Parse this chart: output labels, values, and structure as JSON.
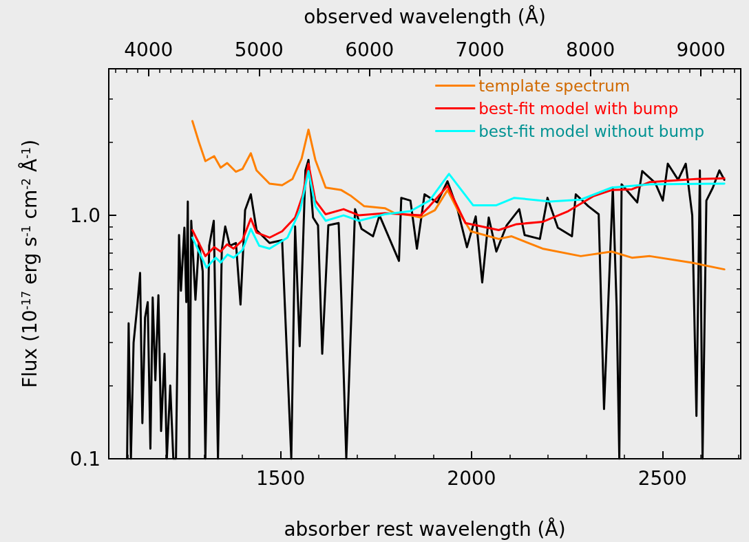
{
  "chart_data": {
    "type": "line",
    "xlabel": "absorber rest wavelength (Å)",
    "x2label": "observed wavelength (Å)",
    "ylabel": "Flux (10$^{-17}$ erg s$^{-1}$ cm$^{-2}$ Å$^{-1}$)",
    "xlim": [
      1050,
      2705
    ],
    "xticks": [
      {
        "value": 1100,
        "label": null
      },
      {
        "value": 1200,
        "label": null
      },
      {
        "value": 1300,
        "label": null
      },
      {
        "value": 1400,
        "label": null
      },
      1500,
      {
        "value": 1600,
        "label": null
      },
      {
        "value": 1700,
        "label": null
      },
      {
        "value": 1800,
        "label": null
      },
      {
        "value": 1900,
        "label": null
      },
      2000,
      {
        "value": 2100,
        "label": null
      },
      {
        "value": 2200,
        "label": null
      },
      {
        "value": 2300,
        "label": null
      },
      {
        "value": 2400,
        "label": null
      },
      2500,
      {
        "value": 2600,
        "label": null
      },
      {
        "value": 2700,
        "label": null
      }
    ],
    "x2lim": [
      3640,
      9360
    ],
    "x2ticks": [
      {
        "value": 3700,
        "label": null
      },
      {
        "value": 3800,
        "label": null
      },
      {
        "value": 3900,
        "label": null
      },
      4000,
      {
        "value": 4100,
        "label": null
      },
      {
        "value": 4200,
        "label": null
      },
      {
        "value": 4300,
        "label": null
      },
      {
        "value": 4400,
        "label": null
      },
      {
        "value": 4500,
        "label": null
      },
      {
        "value": 4600,
        "label": null
      },
      {
        "value": 4700,
        "label": null
      },
      {
        "value": 4800,
        "label": null
      },
      {
        "value": 4900,
        "label": null
      },
      5000,
      {
        "value": 5100,
        "label": null
      },
      {
        "value": 5200,
        "label": null
      },
      {
        "value": 5300,
        "label": null
      },
      {
        "value": 5400,
        "label": null
      },
      {
        "value": 5500,
        "label": null
      },
      {
        "value": 5600,
        "label": null
      },
      {
        "value": 5700,
        "label": null
      },
      {
        "value": 5800,
        "label": null
      },
      {
        "value": 5900,
        "label": null
      },
      6000,
      {
        "value": 6100,
        "label": null
      },
      {
        "value": 6200,
        "label": null
      },
      {
        "value": 6300,
        "label": null
      },
      {
        "value": 6400,
        "label": null
      },
      {
        "value": 6500,
        "label": null
      },
      {
        "value": 6600,
        "label": null
      },
      {
        "value": 6700,
        "label": null
      },
      {
        "value": 6800,
        "label": null
      },
      {
        "value": 6900,
        "label": null
      },
      7000,
      {
        "value": 7100,
        "label": null
      },
      {
        "value": 7200,
        "label": null
      },
      {
        "value": 7300,
        "label": null
      },
      {
        "value": 7400,
        "label": null
      },
      {
        "value": 7500,
        "label": null
      },
      {
        "value": 7600,
        "label": null
      },
      {
        "value": 7700,
        "label": null
      },
      {
        "value": 7800,
        "label": null
      },
      {
        "value": 7900,
        "label": null
      },
      8000,
      {
        "value": 8100,
        "label": null
      },
      {
        "value": 8200,
        "label": null
      },
      {
        "value": 8300,
        "label": null
      },
      {
        "value": 8400,
        "label": null
      },
      {
        "value": 8500,
        "label": null
      },
      {
        "value": 8600,
        "label": null
      },
      {
        "value": 8700,
        "label": null
      },
      {
        "value": 8800,
        "label": null
      },
      {
        "value": 8900,
        "label": null
      },
      9000,
      {
        "value": 9100,
        "label": null
      },
      {
        "value": 9200,
        "label": null
      },
      {
        "value": 9300,
        "label": null
      }
    ],
    "ylim": [
      0.1,
      4
    ],
    "yticks": [
      0.1,
      {
        "value": 0.2,
        "label": null
      },
      {
        "value": 0.3,
        "label": null
      },
      {
        "value": 0.4,
        "label": null
      },
      {
        "value": 0.5,
        "label": null
      },
      {
        "value": 0.6,
        "label": null
      },
      {
        "value": 0.7,
        "label": null
      },
      {
        "value": 0.8,
        "label": null
      },
      {
        "value": 0.9,
        "label": null
      },
      {
        "value": 1,
        "label": "1.0"
      },
      {
        "value": 2,
        "label": null
      },
      {
        "value": 3,
        "label": null
      }
    ],
    "log": "y",
    "legend": "top right",
    "marker": "none",
    "series": [
      {
        "color": "#000000",
        "x": [
          1098,
          1102,
          1108,
          1115,
          1125,
          1132,
          1138,
          1145,
          1152,
          1159,
          1165,
          1172,
          1180,
          1187,
          1196,
          1202,
          1211,
          1219,
          1226,
          1234,
          1239,
          1248,
          1253,
          1257,
          1261,
          1266,
          1277,
          1286,
          1296,
          1303,
          1313,
          1325,
          1336,
          1346,
          1355,
          1367,
          1383,
          1395,
          1407,
          1422,
          1437,
          1471,
          1504,
          1528,
          1538,
          1550,
          1565,
          1573,
          1585,
          1598,
          1609,
          1625,
          1652,
          1659,
          1672,
          1695,
          1712,
          1742,
          1759,
          1810,
          1816,
          1840,
          1857,
          1877,
          1910,
          1937,
          1964,
          1988,
          2011,
          2028,
          2045,
          2065,
          2092,
          2125,
          2139,
          2179,
          2199,
          2226,
          2263,
          2273,
          2306,
          2333,
          2347,
          2370,
          2380,
          2387,
          2393,
          2434,
          2447,
          2481,
          2501,
          2514,
          2541,
          2561,
          2578,
          2589,
          2598,
          2605,
          2615,
          2632,
          2649,
          2662
        ],
        "values": [
          0.1,
          0.36,
          0.1,
          0.3,
          0.43,
          0.58,
          0.14,
          0.38,
          0.44,
          0.11,
          0.46,
          0.21,
          0.47,
          0.13,
          0.27,
          0.1,
          0.2,
          0.1,
          0.1,
          0.83,
          0.49,
          0.89,
          0.44,
          1.14,
          0.1,
          0.95,
          0.45,
          0.77,
          0.59,
          0.1,
          0.75,
          0.95,
          0.1,
          0.72,
          0.9,
          0.75,
          0.77,
          0.43,
          1.05,
          1.22,
          0.87,
          0.77,
          0.79,
          0.1,
          0.9,
          0.29,
          1.53,
          1.69,
          0.98,
          0.91,
          0.27,
          0.91,
          0.93,
          0.46,
          0.1,
          1.06,
          0.88,
          0.82,
          1.0,
          0.65,
          1.18,
          1.15,
          0.73,
          1.22,
          1.13,
          1.38,
          1.05,
          0.74,
          0.99,
          0.53,
          0.98,
          0.71,
          0.91,
          1.06,
          0.83,
          0.8,
          1.18,
          0.89,
          0.82,
          1.22,
          1.09,
          1.01,
          0.16,
          1.3,
          0.42,
          0.1,
          1.34,
          1.13,
          1.52,
          1.36,
          1.15,
          1.63,
          1.4,
          1.63,
          1.0,
          0.15,
          1.53,
          0.1,
          1.15,
          1.3,
          1.53,
          1.4
        ]
      },
      {
        "name": "template spectrum",
        "color": "#ff8000",
        "x": [
          1269,
          1286,
          1303,
          1326,
          1343,
          1360,
          1383,
          1400,
          1422,
          1437,
          1471,
          1504,
          1531,
          1555,
          1573,
          1591,
          1618,
          1659,
          1685,
          1719,
          1773,
          1799,
          1840,
          1867,
          1904,
          1937,
          1964,
          1998,
          2071,
          2105,
          2186,
          2286,
          2367,
          2420,
          2467,
          2575,
          2662
        ],
        "values": [
          2.44,
          2.0,
          1.67,
          1.75,
          1.57,
          1.64,
          1.51,
          1.55,
          1.8,
          1.53,
          1.35,
          1.33,
          1.41,
          1.71,
          2.25,
          1.69,
          1.3,
          1.27,
          1.2,
          1.09,
          1.07,
          1.02,
          1.0,
          0.98,
          1.05,
          1.27,
          1.05,
          0.86,
          0.8,
          0.82,
          0.73,
          0.68,
          0.71,
          0.67,
          0.68,
          0.64,
          0.6
        ]
      },
      {
        "name": "best-fit model with bump",
        "color": "#ff0000",
        "x": [
          1269,
          1303,
          1326,
          1343,
          1360,
          1377,
          1400,
          1422,
          1437,
          1471,
          1504,
          1538,
          1558,
          1573,
          1591,
          1618,
          1665,
          1705,
          1773,
          1820,
          1867,
          1890,
          1937,
          1984,
          2071,
          2118,
          2186,
          2253,
          2320,
          2367,
          2420,
          2467,
          2588,
          2662
        ],
        "values": [
          0.87,
          0.68,
          0.74,
          0.71,
          0.76,
          0.73,
          0.79,
          0.97,
          0.85,
          0.81,
          0.86,
          0.98,
          1.21,
          1.63,
          1.15,
          1.01,
          1.06,
          1.0,
          1.02,
          1.01,
          1.0,
          1.09,
          1.32,
          0.93,
          0.87,
          0.92,
          0.94,
          1.04,
          1.2,
          1.27,
          1.28,
          1.37,
          1.41,
          1.42
        ]
      },
      {
        "name": "best-fit model without bump",
        "color": "#00ffff",
        "x": [
          1269,
          1306,
          1330,
          1343,
          1361,
          1377,
          1400,
          1422,
          1444,
          1471,
          1518,
          1551,
          1573,
          1591,
          1618,
          1665,
          1705,
          1773,
          1840,
          1890,
          1941,
          2004,
          2065,
          2112,
          2206,
          2286,
          2367,
          2467,
          2662
        ],
        "values": [
          0.81,
          0.61,
          0.67,
          0.64,
          0.69,
          0.67,
          0.72,
          0.88,
          0.75,
          0.73,
          0.81,
          1.05,
          1.52,
          1.09,
          0.95,
          1.0,
          0.95,
          1.01,
          1.04,
          1.15,
          1.48,
          1.1,
          1.1,
          1.18,
          1.14,
          1.16,
          1.3,
          1.34,
          1.35
        ]
      }
    ]
  }
}
